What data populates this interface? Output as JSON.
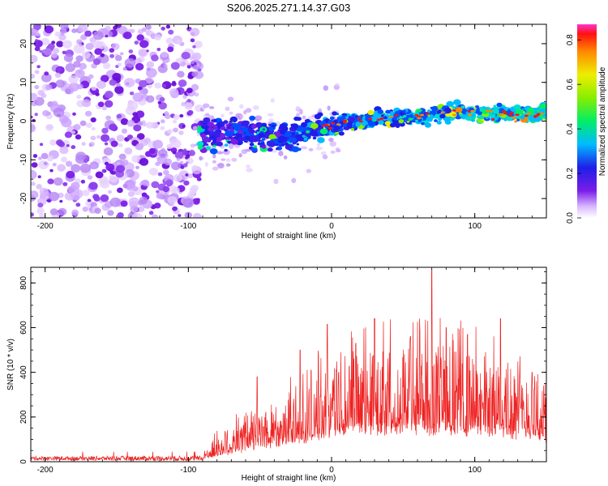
{
  "title": "S206.2025.271.14.37.G03",
  "colors": {
    "snr_line": "#ee2222",
    "frame": "#000000",
    "scatter_base": "#7a1ee8"
  },
  "chart_data": [
    {
      "type": "heatmap",
      "name": "spectrogram",
      "xlabel": "Height of straight line (km)",
      "ylabel": "Frequency (Hz)",
      "xlim": [
        -210,
        150
      ],
      "ylim": [
        -25,
        25
      ],
      "xticks": [
        -200,
        -100,
        0,
        100
      ],
      "yticks": [
        -20,
        -10,
        0,
        10,
        20
      ],
      "colorbar": {
        "label": "Normalized spectral amplitude",
        "range": [
          0,
          0.87
        ],
        "ticks": [
          "0.0",
          "0.2",
          "0.4",
          "0.6",
          "0.8"
        ],
        "tick_values": [
          0,
          0.2,
          0.4,
          0.6,
          0.8
        ]
      },
      "noise_region_x": [
        -210,
        -92
      ],
      "signal_track": [
        {
          "x": -92,
          "f": -3
        },
        {
          "x": -80,
          "f": -3
        },
        {
          "x": -60,
          "f": -3.5
        },
        {
          "x": -40,
          "f": -4
        },
        {
          "x": -25,
          "f": -4
        },
        {
          "x": -15,
          "f": -2
        },
        {
          "x": 0,
          "f": -1
        },
        {
          "x": 25,
          "f": 0.5
        },
        {
          "x": 50,
          "f": 1
        },
        {
          "x": 80,
          "f": 2
        },
        {
          "x": 100,
          "f": 2
        },
        {
          "x": 130,
          "f": 2
        },
        {
          "x": 150,
          "f": 2
        }
      ]
    },
    {
      "type": "line",
      "name": "snr",
      "xlabel": "Height of straight line (km)",
      "ylabel": "SNR (10 * v/v)",
      "xlim": [
        -210,
        150
      ],
      "ylim": [
        0,
        870
      ],
      "xticks": [
        -200,
        -100,
        0,
        100
      ],
      "yticks": [
        0,
        200,
        400,
        600,
        800
      ],
      "envelope": [
        {
          "x": -210,
          "base": 15,
          "amp": 20
        },
        {
          "x": -90,
          "base": 15,
          "amp": 25
        },
        {
          "x": -75,
          "base": 40,
          "amp": 120
        },
        {
          "x": -55,
          "base": 70,
          "amp": 150
        },
        {
          "x": -40,
          "base": 90,
          "amp": 190
        },
        {
          "x": -20,
          "base": 110,
          "amp": 230
        },
        {
          "x": -5,
          "base": 140,
          "amp": 280
        },
        {
          "x": 10,
          "base": 160,
          "amp": 330
        },
        {
          "x": 40,
          "base": 170,
          "amp": 360
        },
        {
          "x": 70,
          "base": 170,
          "amp": 380
        },
        {
          "x": 100,
          "base": 160,
          "amp": 340
        },
        {
          "x": 130,
          "base": 140,
          "amp": 300
        },
        {
          "x": 150,
          "base": 120,
          "amp": 250
        }
      ],
      "peaks": [
        {
          "x": -52,
          "y": 380
        },
        {
          "x": -22,
          "y": 500
        },
        {
          "x": -3,
          "y": 615
        },
        {
          "x": 5,
          "y": 400
        },
        {
          "x": 17,
          "y": 530
        },
        {
          "x": 30,
          "y": 640
        },
        {
          "x": 55,
          "y": 560
        },
        {
          "x": 70,
          "y": 860
        },
        {
          "x": 80,
          "y": 600
        },
        {
          "x": 95,
          "y": 570
        },
        {
          "x": 118,
          "y": 640
        },
        {
          "x": 140,
          "y": 400
        }
      ]
    }
  ]
}
